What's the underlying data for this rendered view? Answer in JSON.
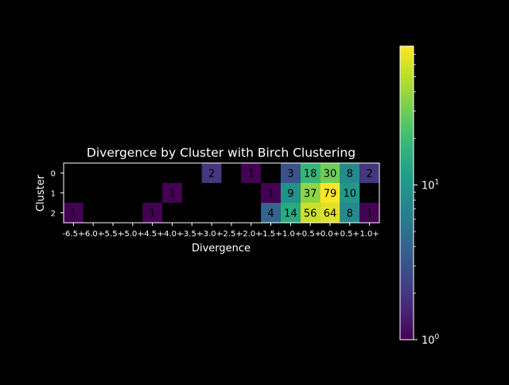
{
  "chart_data": {
    "type": "heatmap",
    "title": "Divergence by Cluster with Birch Clustering",
    "xlabel": "Divergence",
    "ylabel": "Cluster",
    "x_categories": [
      "-6.5+",
      "-6.0+",
      "-5.5+",
      "-5.0+",
      "-4.5+",
      "-4.0+",
      "-3.5+",
      "-3.0+",
      "-2.5+",
      "-2.0+",
      "-1.5+",
      "-1.0+",
      "-0.5+",
      "0.0+",
      "0.5+",
      "1.0+"
    ],
    "y_categories": [
      "0",
      "1",
      "2"
    ],
    "values": [
      [
        null,
        null,
        null,
        null,
        null,
        null,
        null,
        2,
        null,
        1,
        null,
        3,
        18,
        30,
        8,
        2
      ],
      [
        null,
        null,
        null,
        null,
        null,
        1,
        null,
        null,
        null,
        null,
        1,
        9,
        37,
        79,
        10,
        null
      ],
      [
        1,
        null,
        null,
        null,
        1,
        null,
        null,
        null,
        null,
        null,
        4,
        14,
        56,
        64,
        8,
        1
      ]
    ],
    "colorscale": "viridis",
    "color_scale_type": "log",
    "color_range": [
      1,
      79
    ],
    "colorbar_ticks": [
      {
        "value": 1,
        "label": "10",
        "exp": "0"
      },
      {
        "value": 10,
        "label": "10",
        "exp": "1"
      }
    ],
    "cell_labels": true,
    "background": "#000000"
  }
}
